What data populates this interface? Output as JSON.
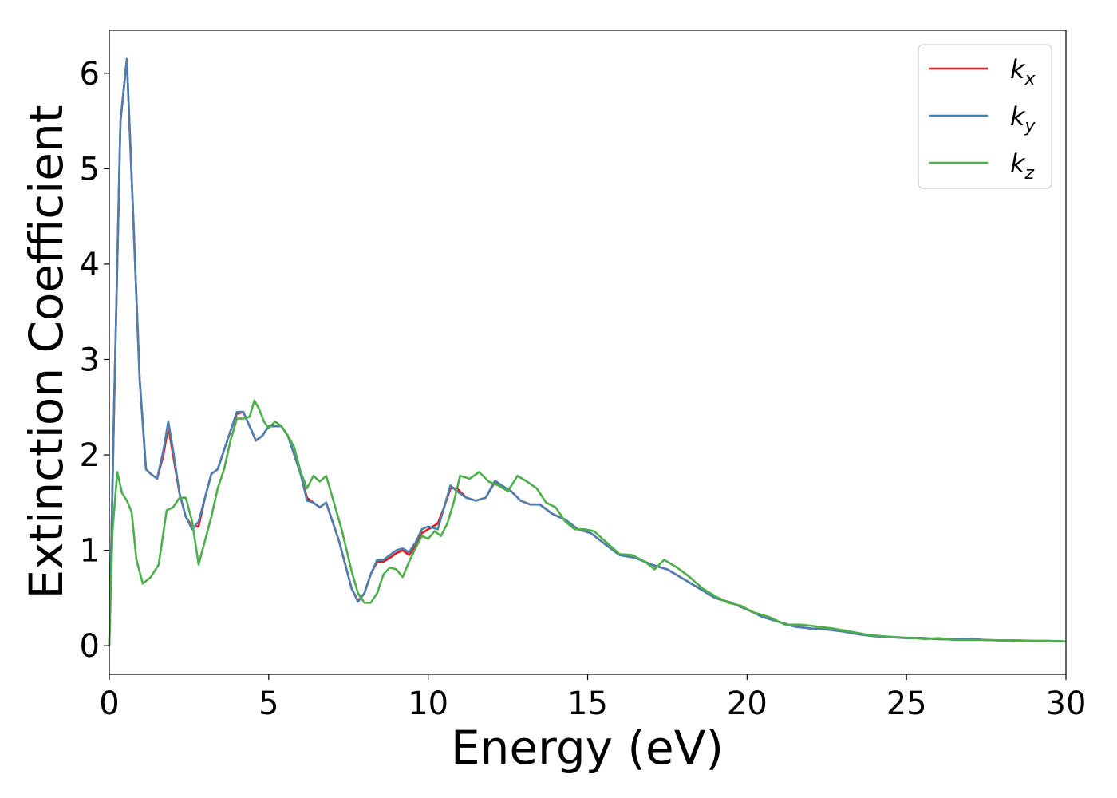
{
  "chart_data": {
    "type": "line",
    "xlabel": "Energy (eV)",
    "ylabel": "Extinction Coefficient",
    "xlim": [
      0,
      30
    ],
    "ylim": [
      -0.3,
      6.45
    ],
    "xticks": [
      "0",
      "5",
      "10",
      "15",
      "20",
      "25",
      "30"
    ],
    "yticks": [
      "0",
      "1",
      "2",
      "3",
      "4",
      "5",
      "6"
    ],
    "grid": false,
    "legend_position": "top-right",
    "series": [
      {
        "name": "k_x",
        "label_base": "k",
        "label_sub": "x",
        "color": "#e41a1c",
        "points": [
          [
            0,
            0
          ],
          [
            0.15,
            2.5
          ],
          [
            0.35,
            5.5
          ],
          [
            0.55,
            6.15
          ],
          [
            0.75,
            4.5
          ],
          [
            0.95,
            2.8
          ],
          [
            1.15,
            1.85
          ],
          [
            1.3,
            1.8
          ],
          [
            1.5,
            1.75
          ],
          [
            1.7,
            2.0
          ],
          [
            1.85,
            2.3
          ],
          [
            2.0,
            2.0
          ],
          [
            2.2,
            1.6
          ],
          [
            2.4,
            1.35
          ],
          [
            2.6,
            1.25
          ],
          [
            2.8,
            1.25
          ],
          [
            3.0,
            1.55
          ],
          [
            3.2,
            1.8
          ],
          [
            3.4,
            1.85
          ],
          [
            3.6,
            2.05
          ],
          [
            3.8,
            2.25
          ],
          [
            4.0,
            2.43
          ],
          [
            4.2,
            2.45
          ],
          [
            4.4,
            2.3
          ],
          [
            4.6,
            2.15
          ],
          [
            4.8,
            2.2
          ],
          [
            5.0,
            2.3
          ],
          [
            5.2,
            2.3
          ],
          [
            5.4,
            2.3
          ],
          [
            5.6,
            2.2
          ],
          [
            5.8,
            2.0
          ],
          [
            6.0,
            1.8
          ],
          [
            6.2,
            1.55
          ],
          [
            6.4,
            1.5
          ],
          [
            6.6,
            1.45
          ],
          [
            6.8,
            1.5
          ],
          [
            7.0,
            1.3
          ],
          [
            7.2,
            1.1
          ],
          [
            7.4,
            0.85
          ],
          [
            7.6,
            0.6
          ],
          [
            7.8,
            0.47
          ],
          [
            8.0,
            0.55
          ],
          [
            8.2,
            0.75
          ],
          [
            8.4,
            0.88
          ],
          [
            8.6,
            0.88
          ],
          [
            8.8,
            0.92
          ],
          [
            9.0,
            0.97
          ],
          [
            9.2,
            1.0
          ],
          [
            9.4,
            0.95
          ],
          [
            9.6,
            1.05
          ],
          [
            9.8,
            1.18
          ],
          [
            10.0,
            1.22
          ],
          [
            10.3,
            1.28
          ],
          [
            10.5,
            1.45
          ],
          [
            10.7,
            1.65
          ],
          [
            10.9,
            1.65
          ],
          [
            11.2,
            1.55
          ],
          [
            11.5,
            1.52
          ],
          [
            11.8,
            1.55
          ],
          [
            12.1,
            1.72
          ],
          [
            12.3,
            1.68
          ],
          [
            12.6,
            1.62
          ],
          [
            12.9,
            1.52
          ],
          [
            13.2,
            1.48
          ],
          [
            13.5,
            1.48
          ],
          [
            13.9,
            1.38
          ],
          [
            14.3,
            1.32
          ],
          [
            14.7,
            1.22
          ],
          [
            15.1,
            1.18
          ],
          [
            15.6,
            1.05
          ],
          [
            16.0,
            0.95
          ],
          [
            16.5,
            0.92
          ],
          [
            17.0,
            0.85
          ],
          [
            17.5,
            0.8
          ],
          [
            18.0,
            0.7
          ],
          [
            18.5,
            0.6
          ],
          [
            19.0,
            0.5
          ],
          [
            19.5,
            0.45
          ],
          [
            20.0,
            0.38
          ],
          [
            20.5,
            0.3
          ],
          [
            21.0,
            0.25
          ],
          [
            21.5,
            0.2
          ],
          [
            22.0,
            0.18
          ],
          [
            22.5,
            0.17
          ],
          [
            23.0,
            0.15
          ],
          [
            23.5,
            0.12
          ],
          [
            24.0,
            0.1
          ],
          [
            24.5,
            0.09
          ],
          [
            25.0,
            0.08
          ],
          [
            25.5,
            0.08
          ],
          [
            26.0,
            0.07
          ],
          [
            26.5,
            0.065
          ],
          [
            27.0,
            0.07
          ],
          [
            27.5,
            0.06
          ],
          [
            28.0,
            0.055
          ],
          [
            28.5,
            0.055
          ],
          [
            29.0,
            0.05
          ],
          [
            29.5,
            0.05
          ],
          [
            30.0,
            0.045
          ]
        ]
      },
      {
        "name": "k_y",
        "label_base": "k",
        "label_sub": "y",
        "color": "#4a7fb0",
        "points": [
          [
            0,
            0
          ],
          [
            0.15,
            2.5
          ],
          [
            0.35,
            5.5
          ],
          [
            0.55,
            6.15
          ],
          [
            0.75,
            4.5
          ],
          [
            0.95,
            2.8
          ],
          [
            1.15,
            1.85
          ],
          [
            1.3,
            1.8
          ],
          [
            1.5,
            1.75
          ],
          [
            1.7,
            2.05
          ],
          [
            1.85,
            2.35
          ],
          [
            2.0,
            2.05
          ],
          [
            2.2,
            1.6
          ],
          [
            2.4,
            1.35
          ],
          [
            2.6,
            1.22
          ],
          [
            2.8,
            1.3
          ],
          [
            3.0,
            1.55
          ],
          [
            3.2,
            1.8
          ],
          [
            3.4,
            1.85
          ],
          [
            3.6,
            2.05
          ],
          [
            3.8,
            2.25
          ],
          [
            4.0,
            2.45
          ],
          [
            4.2,
            2.45
          ],
          [
            4.4,
            2.3
          ],
          [
            4.6,
            2.15
          ],
          [
            4.8,
            2.2
          ],
          [
            5.0,
            2.3
          ],
          [
            5.2,
            2.3
          ],
          [
            5.4,
            2.3
          ],
          [
            5.6,
            2.2
          ],
          [
            5.8,
            2.0
          ],
          [
            6.0,
            1.8
          ],
          [
            6.2,
            1.52
          ],
          [
            6.4,
            1.5
          ],
          [
            6.6,
            1.45
          ],
          [
            6.8,
            1.5
          ],
          [
            7.0,
            1.3
          ],
          [
            7.2,
            1.1
          ],
          [
            7.4,
            0.85
          ],
          [
            7.6,
            0.6
          ],
          [
            7.8,
            0.46
          ],
          [
            8.0,
            0.55
          ],
          [
            8.2,
            0.75
          ],
          [
            8.4,
            0.9
          ],
          [
            8.6,
            0.9
          ],
          [
            8.8,
            0.95
          ],
          [
            9.0,
            1.0
          ],
          [
            9.2,
            1.02
          ],
          [
            9.4,
            0.98
          ],
          [
            9.6,
            1.08
          ],
          [
            9.8,
            1.22
          ],
          [
            10.0,
            1.25
          ],
          [
            10.3,
            1.22
          ],
          [
            10.5,
            1.45
          ],
          [
            10.7,
            1.68
          ],
          [
            10.9,
            1.62
          ],
          [
            11.2,
            1.55
          ],
          [
            11.5,
            1.52
          ],
          [
            11.8,
            1.55
          ],
          [
            12.1,
            1.73
          ],
          [
            12.3,
            1.68
          ],
          [
            12.6,
            1.62
          ],
          [
            12.9,
            1.52
          ],
          [
            13.2,
            1.48
          ],
          [
            13.5,
            1.48
          ],
          [
            13.9,
            1.38
          ],
          [
            14.3,
            1.32
          ],
          [
            14.7,
            1.22
          ],
          [
            15.1,
            1.18
          ],
          [
            15.6,
            1.05
          ],
          [
            16.0,
            0.95
          ],
          [
            16.5,
            0.92
          ],
          [
            17.0,
            0.85
          ],
          [
            17.5,
            0.8
          ],
          [
            18.0,
            0.7
          ],
          [
            18.5,
            0.6
          ],
          [
            19.0,
            0.5
          ],
          [
            19.5,
            0.45
          ],
          [
            20.0,
            0.38
          ],
          [
            20.5,
            0.3
          ],
          [
            21.0,
            0.25
          ],
          [
            21.5,
            0.2
          ],
          [
            22.0,
            0.18
          ],
          [
            22.5,
            0.17
          ],
          [
            23.0,
            0.15
          ],
          [
            23.5,
            0.12
          ],
          [
            24.0,
            0.1
          ],
          [
            24.5,
            0.09
          ],
          [
            25.0,
            0.08
          ],
          [
            25.5,
            0.08
          ],
          [
            26.0,
            0.07
          ],
          [
            26.5,
            0.065
          ],
          [
            27.0,
            0.07
          ],
          [
            27.5,
            0.06
          ],
          [
            28.0,
            0.055
          ],
          [
            28.5,
            0.055
          ],
          [
            29.0,
            0.05
          ],
          [
            29.5,
            0.05
          ],
          [
            30.0,
            0.045
          ]
        ]
      },
      {
        "name": "k_z",
        "label_base": "k",
        "label_sub": "z",
        "color": "#4daf4a",
        "points": [
          [
            0,
            0
          ],
          [
            0.1,
            1.2
          ],
          [
            0.25,
            1.82
          ],
          [
            0.4,
            1.6
          ],
          [
            0.55,
            1.52
          ],
          [
            0.7,
            1.4
          ],
          [
            0.85,
            0.9
          ],
          [
            1.05,
            0.65
          ],
          [
            1.3,
            0.72
          ],
          [
            1.55,
            0.85
          ],
          [
            1.8,
            1.42
          ],
          [
            2.0,
            1.45
          ],
          [
            2.2,
            1.55
          ],
          [
            2.4,
            1.55
          ],
          [
            2.6,
            1.3
          ],
          [
            2.8,
            0.85
          ],
          [
            3.0,
            1.1
          ],
          [
            3.2,
            1.35
          ],
          [
            3.4,
            1.65
          ],
          [
            3.6,
            1.85
          ],
          [
            3.8,
            2.15
          ],
          [
            4.0,
            2.38
          ],
          [
            4.2,
            2.38
          ],
          [
            4.4,
            2.4
          ],
          [
            4.55,
            2.57
          ],
          [
            4.7,
            2.48
          ],
          [
            4.85,
            2.35
          ],
          [
            5.0,
            2.28
          ],
          [
            5.2,
            2.35
          ],
          [
            5.4,
            2.3
          ],
          [
            5.6,
            2.2
          ],
          [
            5.8,
            2.08
          ],
          [
            6.0,
            1.82
          ],
          [
            6.2,
            1.65
          ],
          [
            6.4,
            1.78
          ],
          [
            6.6,
            1.72
          ],
          [
            6.8,
            1.78
          ],
          [
            7.0,
            1.55
          ],
          [
            7.3,
            1.2
          ],
          [
            7.6,
            0.78
          ],
          [
            7.8,
            0.55
          ],
          [
            8.0,
            0.45
          ],
          [
            8.2,
            0.45
          ],
          [
            8.4,
            0.55
          ],
          [
            8.6,
            0.75
          ],
          [
            8.8,
            0.82
          ],
          [
            9.0,
            0.8
          ],
          [
            9.2,
            0.72
          ],
          [
            9.4,
            0.88
          ],
          [
            9.6,
            1.02
          ],
          [
            9.8,
            1.15
          ],
          [
            10.0,
            1.12
          ],
          [
            10.2,
            1.2
          ],
          [
            10.4,
            1.15
          ],
          [
            10.6,
            1.28
          ],
          [
            10.8,
            1.5
          ],
          [
            11.0,
            1.78
          ],
          [
            11.3,
            1.75
          ],
          [
            11.6,
            1.82
          ],
          [
            11.9,
            1.72
          ],
          [
            12.2,
            1.68
          ],
          [
            12.5,
            1.62
          ],
          [
            12.8,
            1.78
          ],
          [
            13.1,
            1.72
          ],
          [
            13.4,
            1.65
          ],
          [
            13.7,
            1.5
          ],
          [
            14.0,
            1.45
          ],
          [
            14.3,
            1.3
          ],
          [
            14.6,
            1.22
          ],
          [
            14.9,
            1.22
          ],
          [
            15.2,
            1.2
          ],
          [
            15.6,
            1.08
          ],
          [
            16.0,
            0.96
          ],
          [
            16.4,
            0.95
          ],
          [
            16.8,
            0.88
          ],
          [
            17.1,
            0.8
          ],
          [
            17.4,
            0.9
          ],
          [
            17.8,
            0.82
          ],
          [
            18.2,
            0.72
          ],
          [
            18.6,
            0.6
          ],
          [
            19.0,
            0.52
          ],
          [
            19.4,
            0.45
          ],
          [
            19.8,
            0.42
          ],
          [
            20.2,
            0.35
          ],
          [
            20.7,
            0.3
          ],
          [
            21.2,
            0.22
          ],
          [
            21.7,
            0.22
          ],
          [
            22.2,
            0.2
          ],
          [
            22.7,
            0.18
          ],
          [
            23.2,
            0.15
          ],
          [
            23.7,
            0.12
          ],
          [
            24.2,
            0.1
          ],
          [
            24.7,
            0.09
          ],
          [
            25.2,
            0.08
          ],
          [
            25.6,
            0.07
          ],
          [
            26.0,
            0.08
          ],
          [
            26.5,
            0.06
          ],
          [
            27.0,
            0.06
          ],
          [
            27.5,
            0.06
          ],
          [
            28.0,
            0.055
          ],
          [
            28.5,
            0.05
          ],
          [
            29.0,
            0.05
          ],
          [
            29.5,
            0.05
          ],
          [
            30.0,
            0.045
          ]
        ]
      }
    ]
  }
}
